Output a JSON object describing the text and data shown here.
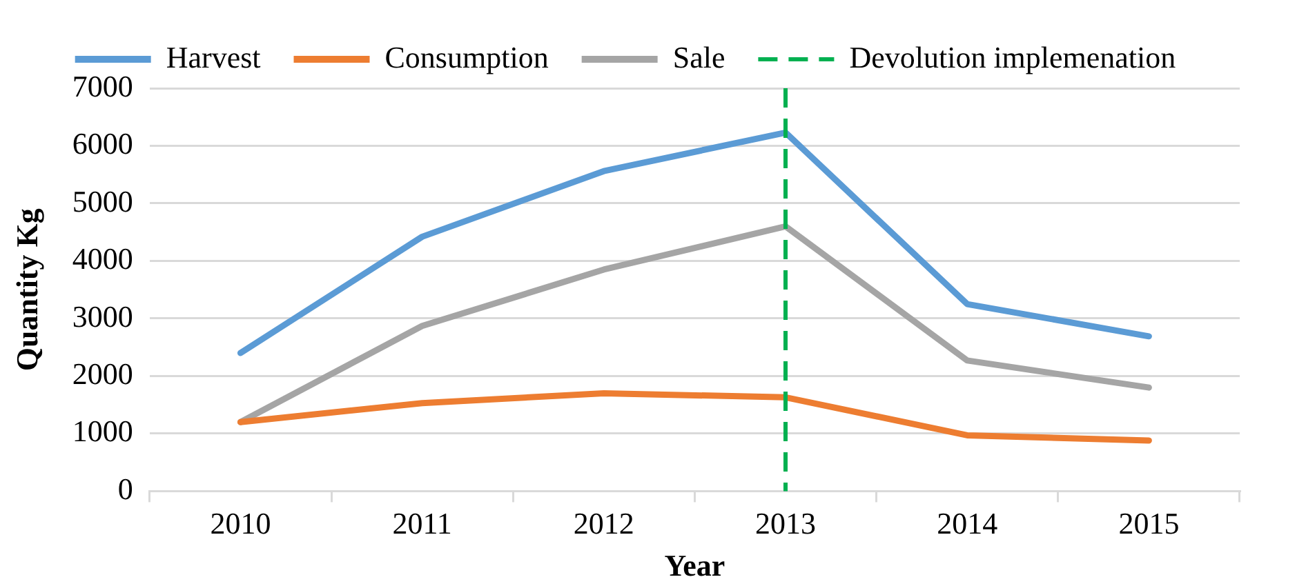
{
  "chart_data": {
    "type": "line",
    "xlabel": "Year",
    "ylabel": "Quantity Kg",
    "categories": [
      "2010",
      "2011",
      "2012",
      "2013",
      "2014",
      "2015"
    ],
    "series": [
      {
        "name": "Harvest",
        "color": "#5b9bd5",
        "values": [
          2400,
          4420,
          5560,
          6230,
          3250,
          2690
        ]
      },
      {
        "name": "Consumption",
        "color": "#ed7d31",
        "values": [
          1200,
          1530,
          1700,
          1630,
          970,
          880
        ]
      },
      {
        "name": "Sale",
        "color": "#a5a5a5",
        "values": [
          1200,
          2870,
          3850,
          4600,
          2270,
          1800
        ]
      }
    ],
    "ylim": [
      0,
      7000
    ],
    "yticks": [
      0,
      1000,
      2000,
      3000,
      4000,
      5000,
      6000,
      7000
    ],
    "ref_lines": [
      {
        "axis": "x",
        "value": "2013",
        "label": "Devolution implemenation",
        "color": "#00b050",
        "line_style": "dashed"
      }
    ],
    "grid": "y",
    "legend": "top",
    "marker": "none",
    "line_style": "solid"
  }
}
